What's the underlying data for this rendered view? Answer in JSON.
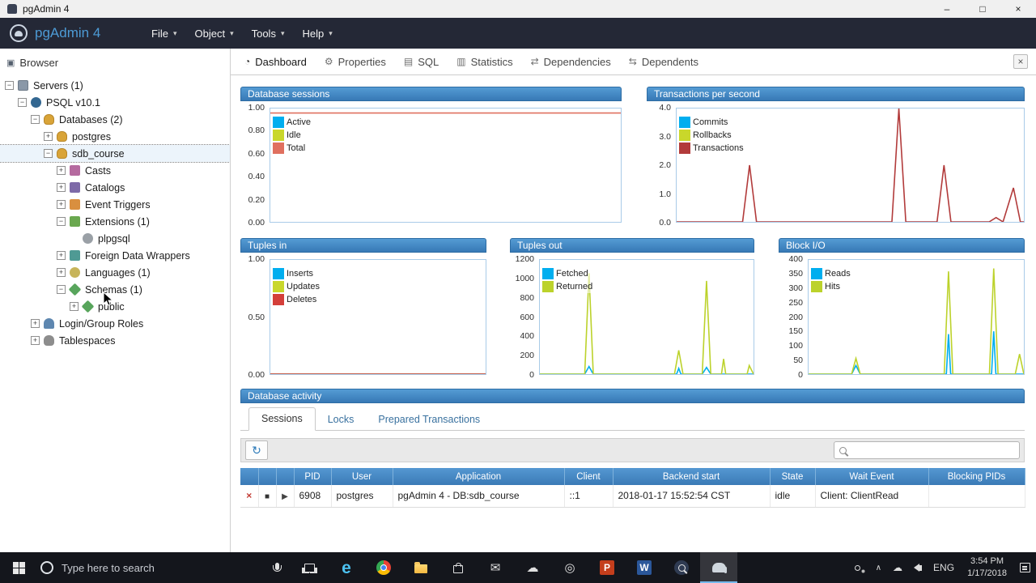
{
  "window": {
    "title": "pgAdmin 4"
  },
  "menubar": {
    "brand": "pgAdmin 4",
    "menus": [
      {
        "label": "File"
      },
      {
        "label": "Object"
      },
      {
        "label": "Tools"
      },
      {
        "label": "Help"
      }
    ]
  },
  "browser": {
    "title": "Browser",
    "tree": [
      {
        "label": "Servers (1)",
        "level": 0,
        "expander": "collapse",
        "icon": "servers-icon"
      },
      {
        "label": "PSQL v10.1",
        "level": 1,
        "expander": "collapse",
        "icon": "server-icon"
      },
      {
        "label": "Databases (2)",
        "level": 2,
        "expander": "collapse",
        "icon": "databases-icon"
      },
      {
        "label": "postgres",
        "level": 3,
        "expander": "expand",
        "icon": "database-icon"
      },
      {
        "label": "sdb_course",
        "level": 3,
        "expander": "collapse",
        "icon": "database-icon",
        "selected": true
      },
      {
        "label": "Casts",
        "level": 4,
        "expander": "expand",
        "icon": "casts-icon"
      },
      {
        "label": "Catalogs",
        "level": 4,
        "expander": "expand",
        "icon": "catalogs-icon"
      },
      {
        "label": "Event Triggers",
        "level": 4,
        "expander": "expand",
        "icon": "event-triggers-icon"
      },
      {
        "label": "Extensions (1)",
        "level": 4,
        "expander": "collapse",
        "icon": "extensions-icon"
      },
      {
        "label": "plpgsql",
        "level": 5,
        "expander": "none",
        "icon": "extension-icon"
      },
      {
        "label": "Foreign Data Wrappers",
        "level": 4,
        "expander": "expand",
        "icon": "fdw-icon"
      },
      {
        "label": "Languages (1)",
        "level": 4,
        "expander": "expand",
        "icon": "languages-icon"
      },
      {
        "label": "Schemas (1)",
        "level": 4,
        "expander": "collapse",
        "icon": "schemas-icon"
      },
      {
        "label": "public",
        "level": 5,
        "expander": "expand",
        "icon": "schema-icon"
      },
      {
        "label": "Login/Group Roles",
        "level": 2,
        "expander": "expand",
        "icon": "roles-icon"
      },
      {
        "label": "Tablespaces",
        "level": 2,
        "expander": "expand",
        "icon": "tablespaces-icon"
      }
    ]
  },
  "main_tabs": [
    {
      "label": "Dashboard",
      "icon": "dashboard-icon",
      "active": true
    },
    {
      "label": "Properties",
      "icon": "properties-icon",
      "active": false
    },
    {
      "label": "SQL",
      "icon": "sql-icon",
      "active": false
    },
    {
      "label": "Statistics",
      "icon": "statistics-icon",
      "active": false
    },
    {
      "label": "Dependencies",
      "icon": "dependencies-icon",
      "active": false
    },
    {
      "label": "Dependents",
      "icon": "dependents-icon",
      "active": false
    }
  ],
  "chart_data": [
    {
      "type": "line",
      "title": "Database sessions",
      "ylim": [
        0,
        1
      ],
      "yticks": [
        "1.00",
        "0.80",
        "0.60",
        "0.40",
        "0.20",
        "0.00"
      ],
      "legend_position": "top-left",
      "grid": false,
      "series": [
        {
          "name": "Active",
          "color": "#00aeef",
          "points": []
        },
        {
          "name": "Idle",
          "color": "#c9d72b",
          "points": []
        },
        {
          "name": "Total",
          "color": "#e0705f",
          "points": [
            [
              0,
              0.96
            ],
            [
              100,
              0.96
            ]
          ]
        }
      ]
    },
    {
      "type": "line",
      "title": "Transactions per second",
      "ylim": [
        0,
        4
      ],
      "yticks": [
        "4.0",
        "3.0",
        "2.0",
        "1.0",
        "0.0"
      ],
      "legend_position": "top-left",
      "grid": false,
      "series": [
        {
          "name": "Commits",
          "color": "#00aeef",
          "points": []
        },
        {
          "name": "Rollbacks",
          "color": "#c9d72b",
          "points": []
        },
        {
          "name": "Transactions",
          "color": "#b23b3b",
          "points": [
            [
              0,
              0
            ],
            [
              19,
              0
            ],
            [
              21,
              2.0
            ],
            [
              23,
              0
            ],
            [
              62,
              0
            ],
            [
              64,
              4.0
            ],
            [
              66,
              0
            ],
            [
              75,
              0
            ],
            [
              77,
              2.0
            ],
            [
              79,
              0
            ],
            [
              90,
              0
            ],
            [
              92,
              0.15
            ],
            [
              94,
              0
            ],
            [
              97,
              1.2
            ],
            [
              99,
              0
            ],
            [
              100,
              0
            ]
          ]
        }
      ]
    },
    {
      "type": "line",
      "title": "Tuples in",
      "ylim": [
        0,
        1
      ],
      "yticks": [
        "1.00",
        "0.50",
        "0.00"
      ],
      "legend_position": "top-left",
      "grid": false,
      "series": [
        {
          "name": "Inserts",
          "color": "#00aeef",
          "points": [
            [
              0,
              0
            ],
            [
              100,
              0
            ]
          ]
        },
        {
          "name": "Updates",
          "color": "#c9d72b",
          "points": [
            [
              0,
              0
            ],
            [
              100,
              0
            ]
          ]
        },
        {
          "name": "Deletes",
          "color": "#d43f3a",
          "points": [
            [
              0,
              0
            ],
            [
              100,
              0
            ]
          ]
        }
      ]
    },
    {
      "type": "line",
      "title": "Tuples out",
      "ylim": [
        0,
        1200
      ],
      "yticks": [
        "1200",
        "1000",
        "800",
        "600",
        "400",
        "200",
        "0"
      ],
      "legend_position": "top-left",
      "grid": false,
      "series": [
        {
          "name": "Fetched",
          "color": "#00aeef",
          "points": [
            [
              0,
              0
            ],
            [
              21,
              0
            ],
            [
              23,
              80
            ],
            [
              25,
              0
            ],
            [
              64,
              0
            ],
            [
              65,
              60
            ],
            [
              66,
              0
            ],
            [
              76,
              0
            ],
            [
              78,
              70
            ],
            [
              80,
              0
            ],
            [
              100,
              0
            ]
          ]
        },
        {
          "name": "Returned",
          "color": "#bcd22b",
          "points": [
            [
              0,
              0
            ],
            [
              21,
              0
            ],
            [
              23,
              1060
            ],
            [
              25,
              0
            ],
            [
              63,
              0
            ],
            [
              65,
              250
            ],
            [
              67,
              0
            ],
            [
              76,
              0
            ],
            [
              78,
              980
            ],
            [
              80,
              0
            ],
            [
              85,
              0
            ],
            [
              86,
              160
            ],
            [
              87,
              0
            ],
            [
              97,
              0
            ],
            [
              98,
              90
            ],
            [
              100,
              0
            ]
          ]
        }
      ]
    },
    {
      "type": "line",
      "title": "Block I/O",
      "ylim": [
        0,
        400
      ],
      "yticks": [
        "400",
        "350",
        "300",
        "250",
        "200",
        "150",
        "100",
        "50",
        "0"
      ],
      "legend_position": "top-left",
      "grid": false,
      "series": [
        {
          "name": "Reads",
          "color": "#00aeef",
          "points": [
            [
              0,
              0
            ],
            [
              20,
              0
            ],
            [
              22,
              30
            ],
            [
              24,
              0
            ],
            [
              64,
              0
            ],
            [
              65,
              140
            ],
            [
              66,
              0
            ],
            [
              85,
              0
            ],
            [
              86,
              150
            ],
            [
              87,
              0
            ],
            [
              100,
              0
            ]
          ]
        },
        {
          "name": "Hits",
          "color": "#bcd22b",
          "points": [
            [
              0,
              0
            ],
            [
              20,
              0
            ],
            [
              22,
              55
            ],
            [
              24,
              0
            ],
            [
              63,
              0
            ],
            [
              65,
              360
            ],
            [
              67,
              0
            ],
            [
              84,
              0
            ],
            [
              86,
              370
            ],
            [
              88,
              0
            ],
            [
              96,
              0
            ],
            [
              98,
              70
            ],
            [
              100,
              0
            ]
          ]
        }
      ]
    }
  ],
  "activity": {
    "title": "Database activity",
    "tabs": [
      {
        "label": "Sessions",
        "active": true
      },
      {
        "label": "Locks",
        "active": false
      },
      {
        "label": "Prepared Transactions",
        "active": false
      }
    ],
    "table": {
      "headers": [
        "",
        "",
        "",
        "PID",
        "User",
        "Application",
        "Client",
        "Backend start",
        "State",
        "Wait Event",
        "Blocking PIDs"
      ],
      "rows": [
        {
          "icons": [
            "terminate",
            "stop",
            "expand"
          ],
          "cells": [
            "6908",
            "postgres",
            "pgAdmin 4 - DB:sdb_course",
            "::1",
            "2018-01-17 15:52:54 CST",
            "idle",
            "Client: ClientRead",
            ""
          ]
        }
      ]
    }
  },
  "taskbar": {
    "search_text": "Type here to search",
    "app_icons": [
      "task-view",
      "edge",
      "chrome",
      "file-explorer",
      "store",
      "mail",
      "onedrive",
      "screen-record",
      "powerpoint",
      "word",
      "search-app",
      "pgadmin"
    ],
    "active_app": "pgadmin",
    "lang": "ENG",
    "time": "3:54 PM",
    "date": "1/17/2018"
  }
}
